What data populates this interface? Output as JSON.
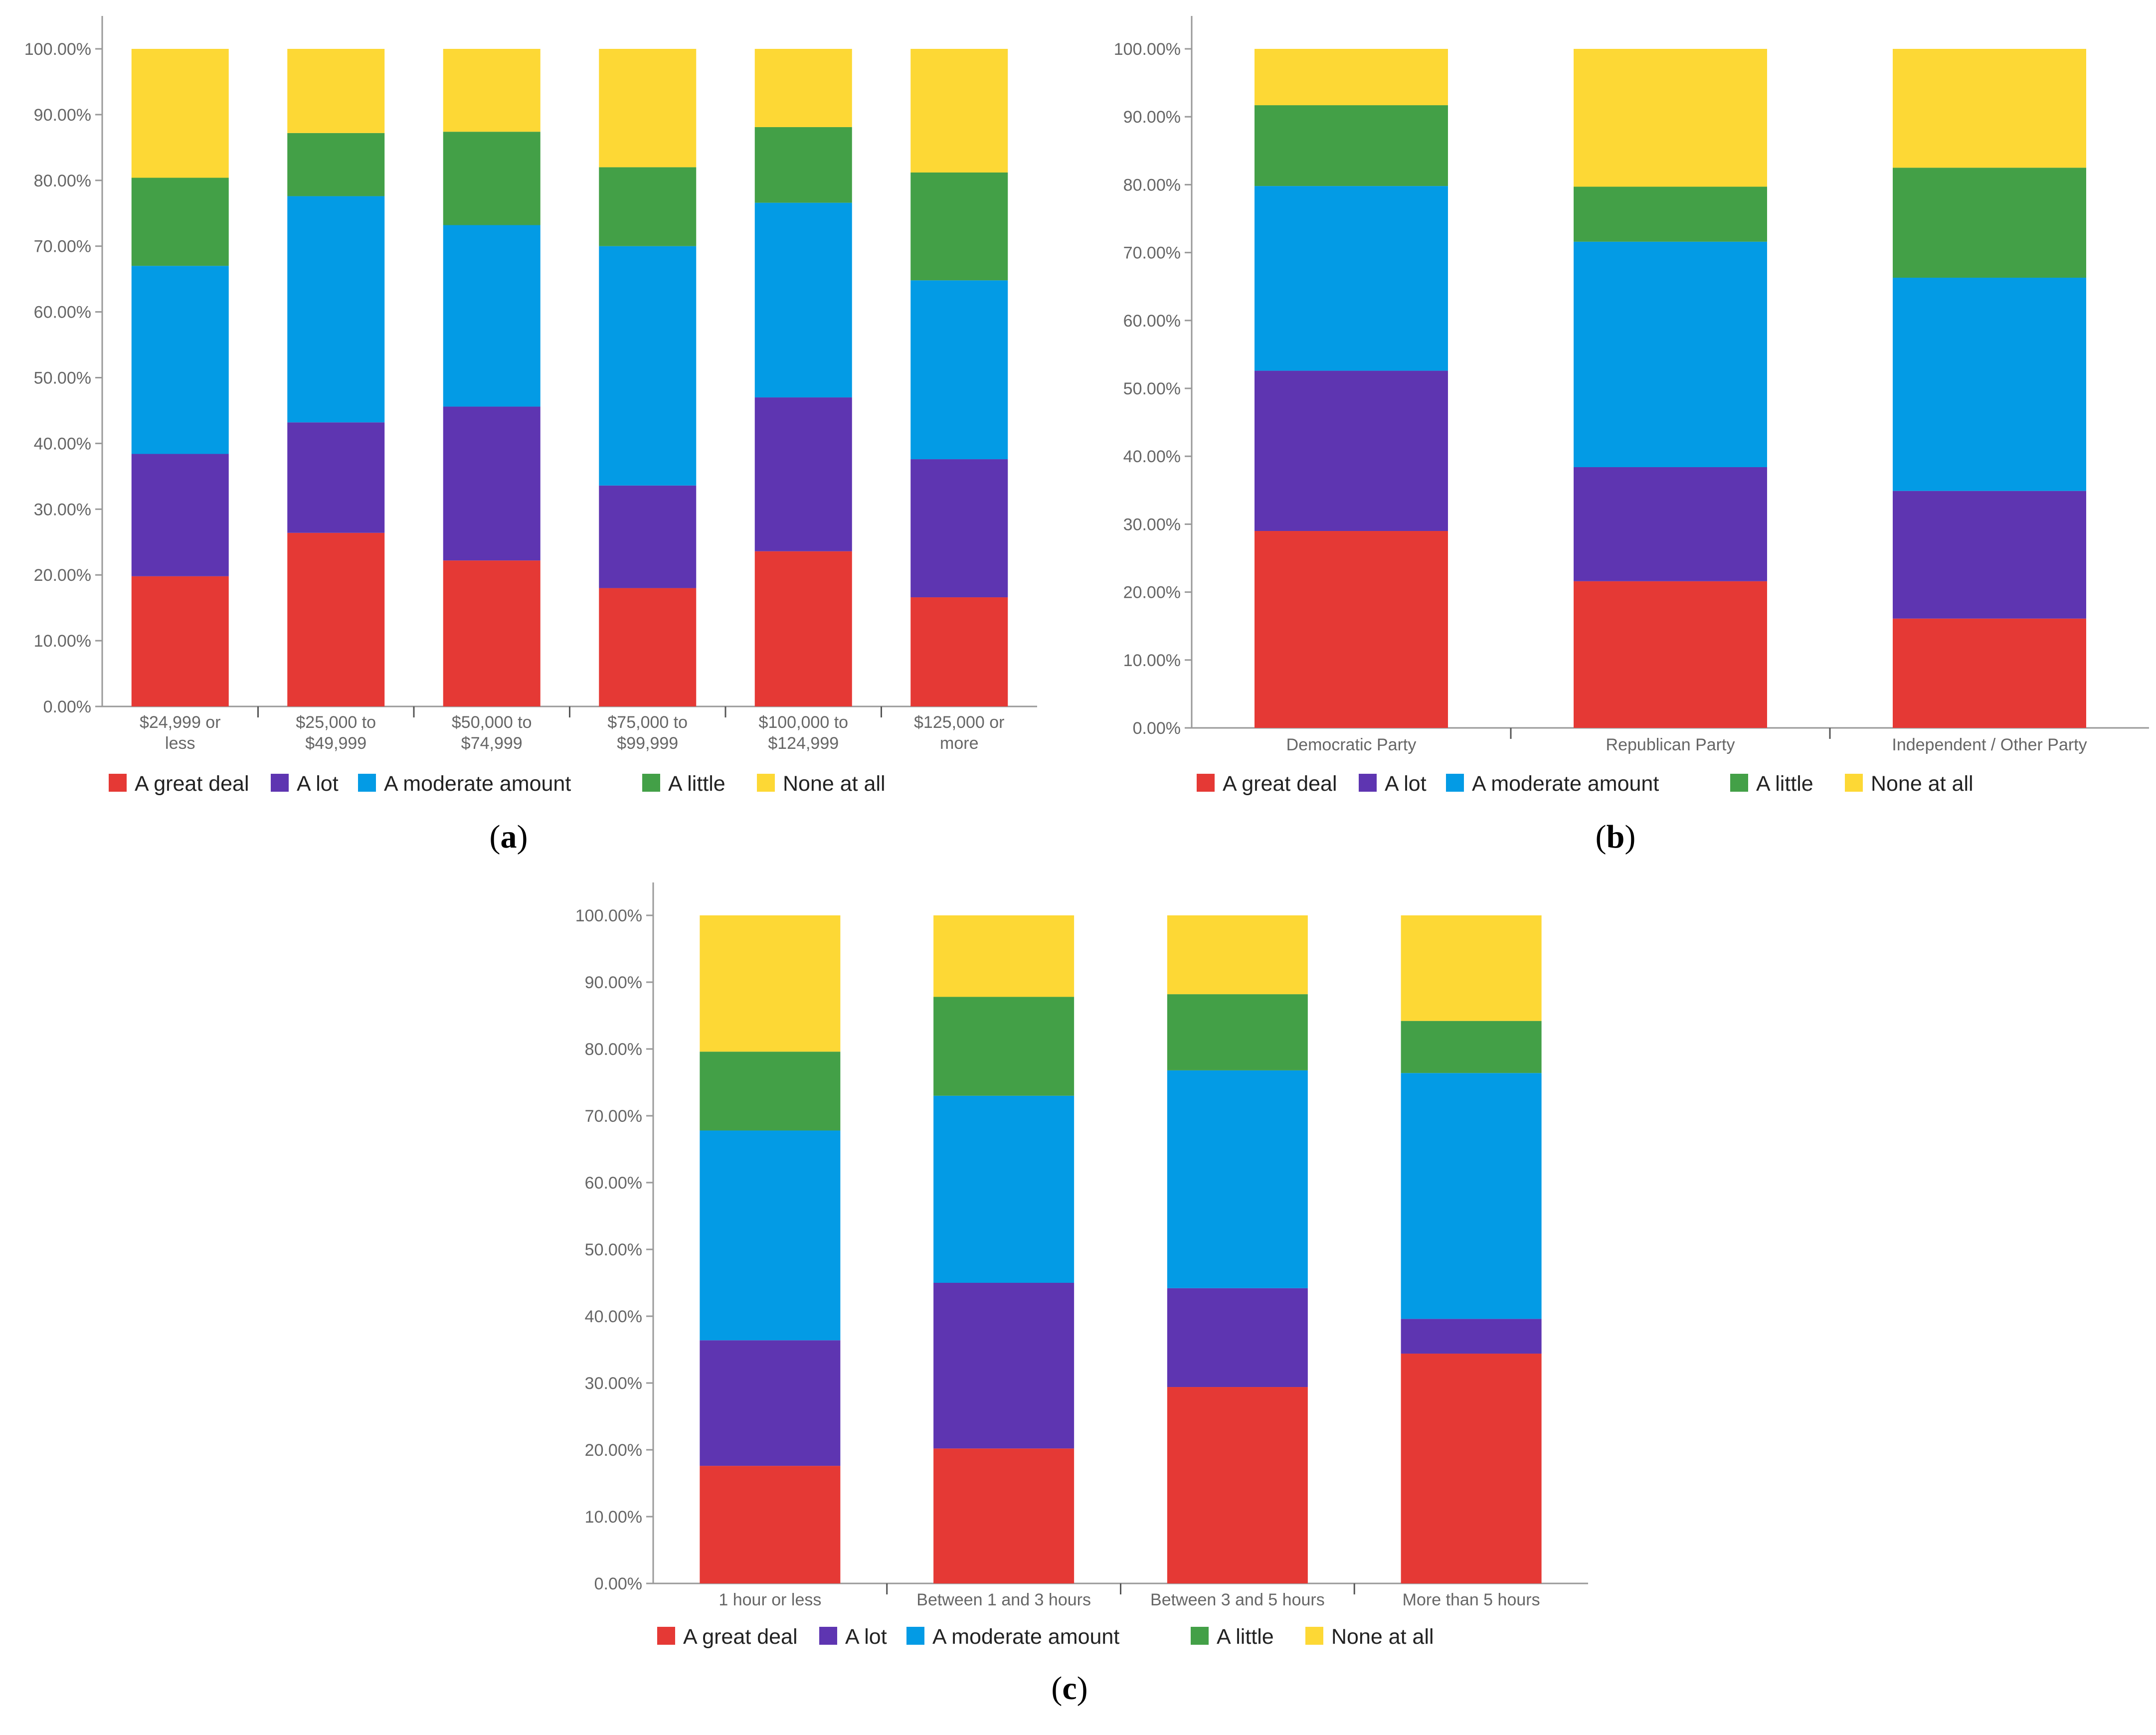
{
  "legend": [
    {
      "label": "A great deal",
      "color": "#e53935"
    },
    {
      "label": "A lot",
      "color": "#5e35b1"
    },
    {
      "label": "A moderate amount",
      "color": "#039be5"
    },
    {
      "label": "A little",
      "color": "#43a047"
    },
    {
      "label": "None at all",
      "color": "#fdd835"
    }
  ],
  "chart_data": [
    {
      "panel": "a",
      "panel_label": "(a)",
      "type": "bar",
      "stacked": true,
      "ylim": [
        0,
        100
      ],
      "yticks": [
        "0.00%",
        "10.00%",
        "20.00%",
        "30.00%",
        "40.00%",
        "50.00%",
        "60.00%",
        "70.00%",
        "80.00%",
        "90.00%",
        "100.00%"
      ],
      "categories": [
        [
          "$24,999 or",
          "less"
        ],
        [
          "$25,000 to",
          "$49,999"
        ],
        [
          "$50,000 to",
          "$74,999"
        ],
        [
          "$75,000 to",
          "$99,999"
        ],
        [
          "$100,000 to",
          "$124,999"
        ],
        [
          "$125,000 or",
          "more"
        ]
      ],
      "series": [
        {
          "name": "A great deal",
          "values": [
            19.8,
            26.4,
            22.2,
            18.0,
            23.6,
            16.6
          ]
        },
        {
          "name": "A lot",
          "values": [
            18.6,
            16.8,
            23.4,
            15.6,
            23.4,
            21.0
          ]
        },
        {
          "name": "A moderate amount",
          "values": [
            28.6,
            34.4,
            27.6,
            36.4,
            29.6,
            27.2
          ]
        },
        {
          "name": "A little",
          "values": [
            13.4,
            9.6,
            14.2,
            12.0,
            11.5,
            16.4
          ]
        },
        {
          "name": "None at all",
          "values": [
            19.6,
            12.8,
            12.6,
            18.0,
            11.9,
            18.8
          ]
        }
      ]
    },
    {
      "panel": "b",
      "panel_label": "(b)",
      "type": "bar",
      "stacked": true,
      "ylim": [
        0,
        100
      ],
      "yticks": [
        "0.00%",
        "10.00%",
        "20.00%",
        "30.00%",
        "40.00%",
        "50.00%",
        "60.00%",
        "70.00%",
        "80.00%",
        "90.00%",
        "100.00%"
      ],
      "categories": [
        [
          "Democratic Party"
        ],
        [
          "Republican Party"
        ],
        [
          "Independent / Other Party"
        ]
      ],
      "series": [
        {
          "name": "A great deal",
          "values": [
            29.0,
            21.6,
            16.1
          ]
        },
        {
          "name": "A lot",
          "values": [
            23.6,
            16.8,
            18.8
          ]
        },
        {
          "name": "A moderate amount",
          "values": [
            27.2,
            33.2,
            31.4
          ]
        },
        {
          "name": "A little",
          "values": [
            11.9,
            8.1,
            16.2
          ]
        },
        {
          "name": "None at all",
          "values": [
            8.3,
            20.3,
            17.5
          ]
        }
      ]
    },
    {
      "panel": "c",
      "panel_label": "(c)",
      "type": "bar",
      "stacked": true,
      "ylim": [
        0,
        100
      ],
      "yticks": [
        "0.00%",
        "10.00%",
        "20.00%",
        "30.00%",
        "40.00%",
        "50.00%",
        "60.00%",
        "70.00%",
        "80.00%",
        "90.00%",
        "100.00%"
      ],
      "categories": [
        [
          "1 hour or less"
        ],
        [
          "Between 1 and 3 hours"
        ],
        [
          "Between 3 and 5 hours"
        ],
        [
          "More than 5 hours"
        ]
      ],
      "series": [
        {
          "name": "A great deal",
          "values": [
            17.6,
            20.2,
            29.4,
            34.4
          ]
        },
        {
          "name": "A lot",
          "values": [
            18.8,
            24.8,
            14.8,
            5.2
          ]
        },
        {
          "name": "A moderate amount",
          "values": [
            31.4,
            28.0,
            32.6,
            36.8
          ]
        },
        {
          "name": "A little",
          "values": [
            11.8,
            14.8,
            11.4,
            7.8
          ]
        },
        {
          "name": "None at all",
          "values": [
            20.4,
            12.2,
            11.8,
            15.8
          ]
        }
      ]
    }
  ]
}
